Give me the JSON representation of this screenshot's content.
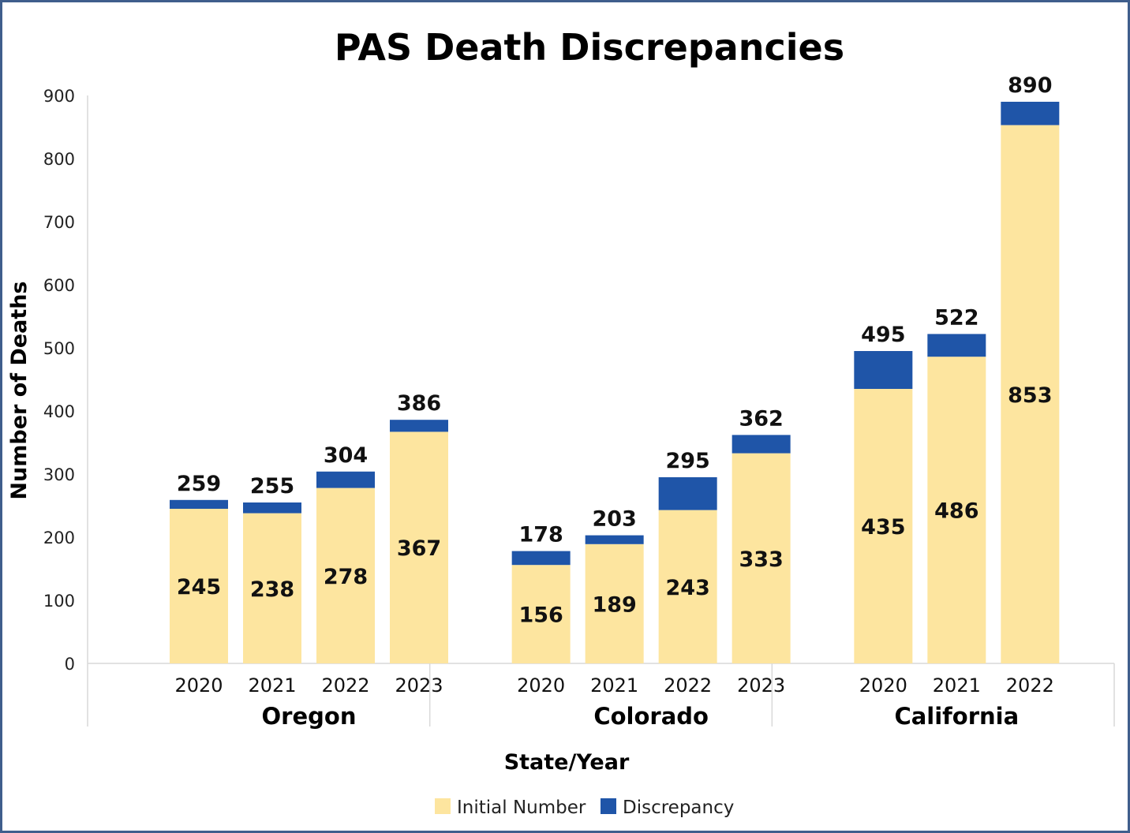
{
  "chart_data": {
    "type": "bar",
    "stacked": true,
    "title": "PAS Death Discrepancies",
    "xlabel": "State/Year",
    "ylabel": "Number of Deaths",
    "ylim": [
      0,
      900
    ],
    "yticks": [
      0,
      100,
      200,
      300,
      400,
      500,
      600,
      700,
      800,
      900
    ],
    "grid": false,
    "legend_position": "bottom",
    "groups": [
      {
        "name": "Oregon",
        "categories": [
          "2020",
          "2021",
          "2022",
          "2023"
        ]
      },
      {
        "name": "Colorado",
        "categories": [
          "2020",
          "2021",
          "2022",
          "2023"
        ]
      },
      {
        "name": "California",
        "categories": [
          "2020",
          "2021",
          "2022"
        ]
      }
    ],
    "series": [
      {
        "name": "Initial Number",
        "color": "#fde59f",
        "values": [
          245,
          238,
          278,
          367,
          156,
          189,
          243,
          333,
          435,
          486,
          853
        ]
      },
      {
        "name": "Discrepancy",
        "color": "#1f55a8",
        "values": [
          14,
          17,
          26,
          19,
          22,
          14,
          52,
          29,
          60,
          36,
          37
        ]
      }
    ],
    "totals": [
      259,
      255,
      304,
      386,
      178,
      203,
      295,
      362,
      495,
      522,
      890
    ]
  }
}
